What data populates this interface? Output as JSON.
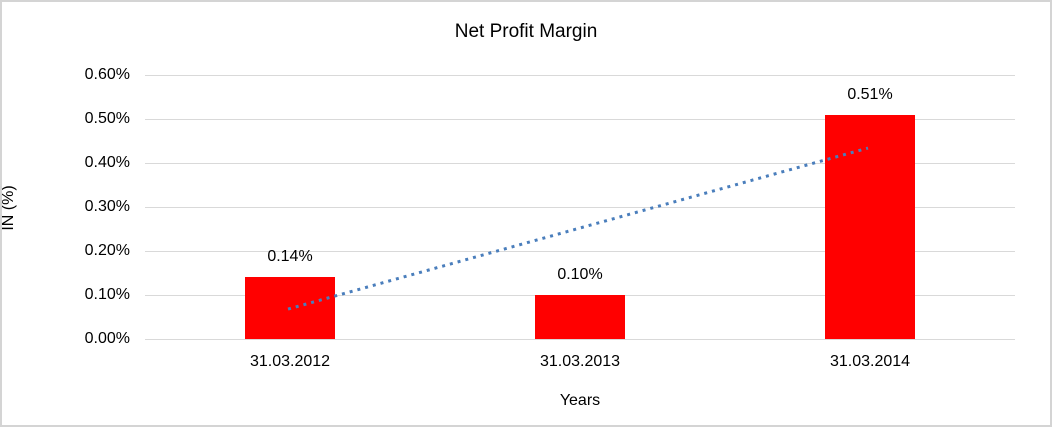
{
  "frame": {
    "background_color": "#ffffff",
    "border_color": "#d4d4d4"
  },
  "chart_data": {
    "type": "bar",
    "title": "Net Profit Margin",
    "xlabel": "Years",
    "ylabel": "IN (%)",
    "categories": [
      "31.03.2012",
      "31.03.2013",
      "31.03.2014"
    ],
    "values": [
      0.14,
      0.1,
      0.51
    ],
    "data_labels": [
      "0.14%",
      "0.10%",
      "0.51%"
    ],
    "y_ticks": [
      "0.00%",
      "0.10%",
      "0.20%",
      "0.30%",
      "0.40%",
      "0.50%",
      "0.60%"
    ],
    "ylim": [
      0,
      0.6
    ],
    "grid": true,
    "legend_position": "none",
    "bar_color": "#ff0000",
    "gridline_color": "#d9d9d9",
    "trendline": {
      "style": "dotted",
      "color": "#4a7ebc",
      "start_category_index": 0,
      "start_value": 0.068,
      "end_category_index": 2,
      "end_value": 0.434
    }
  }
}
